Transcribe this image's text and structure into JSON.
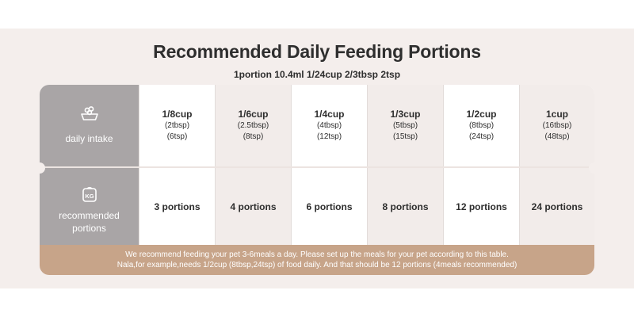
{
  "title": "Recommended Daily Feeding Portions",
  "subtitle": "1portion 10.4ml 1/24cup 2/3tbsp 2tsp",
  "rows": {
    "intake_label": "daily intake",
    "intake_icon": "food-bowl-icon",
    "portions_label_line1": "recommended",
    "portions_label_line2": "portions",
    "portions_icon": "scale-kg-icon"
  },
  "columns": [
    {
      "main": "1/8cup",
      "sub1": "(2tbsp)",
      "sub2": "(6tsp)",
      "portions": "3 portions"
    },
    {
      "main": "1/6cup",
      "sub1": "(2.5tbsp)",
      "sub2": "(8tsp)",
      "portions": "4 portions"
    },
    {
      "main": "1/4cup",
      "sub1": "(4tbsp)",
      "sub2": "(12tsp)",
      "portions": "6 portions"
    },
    {
      "main": "1/3cup",
      "sub1": "(5tbsp)",
      "sub2": "(15tsp)",
      "portions": "8 portions"
    },
    {
      "main": "1/2cup",
      "sub1": "(8tbsp)",
      "sub2": "(24tsp)",
      "portions": "12 portions"
    },
    {
      "main": "1cup",
      "sub1": "(16tbsp)",
      "sub2": "(48tsp)",
      "portions": "24 portions"
    }
  ],
  "footer": {
    "line1": "We recommend feeding your pet 3-6meals a day. Please set up the meals for your pet according to this table.",
    "line2": "Nala,for example,needs 1/2cup (8tbsp,24tsp) of food daily. And that should be 12 portions (4meals recommended)"
  },
  "colors": {
    "header_column": "#a9a5a6",
    "footer": "#c7a489",
    "highlight_cell": "#f2ecea",
    "background_band": "#f4eeec"
  }
}
